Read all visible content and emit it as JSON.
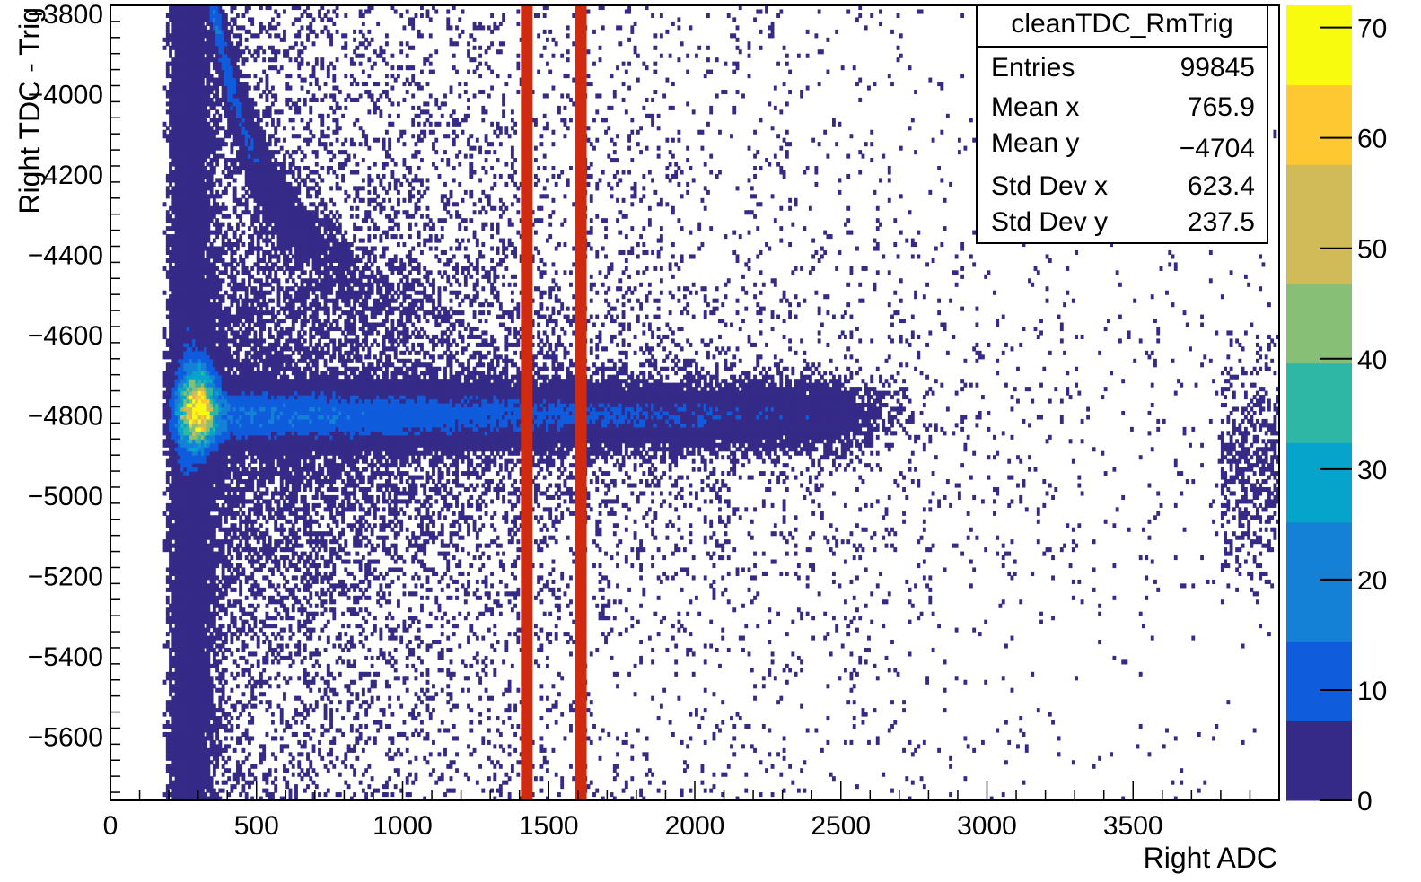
{
  "chart_data": {
    "type": "heatmap",
    "title": "",
    "xlabel": "Right ADC",
    "ylabel": "Right TDC - Trig",
    "xlim": [
      0,
      4000
    ],
    "ylim": [
      -5760,
      -3780
    ],
    "x_ticks": [
      "0",
      "500",
      "1000",
      "1500",
      "2000",
      "2500",
      "3000",
      "3500"
    ],
    "y_ticks": [
      "−3800",
      "−4000",
      "−4200",
      "−4400",
      "−4600",
      "−4800",
      "−5000",
      "−5200",
      "−5400",
      "−5600"
    ],
    "colorbar": {
      "min": 0,
      "max": 72,
      "ticks": [
        "0",
        "10",
        "20",
        "30",
        "40",
        "50",
        "60",
        "70"
      ],
      "palette": [
        "#352a87",
        "#0f5cdd",
        "#1481d6",
        "#06a4ca",
        "#2eb7a4",
        "#87bf77",
        "#d1bb59",
        "#fec832",
        "#f9fb0e"
      ]
    },
    "marker_lines_x": [
      1425,
      1610
    ],
    "marker_line_color": "#d02b10",
    "stats_box": {
      "name": "cleanTDC_RmTrig",
      "rows": [
        {
          "label": "Entries",
          "value": "99845"
        },
        {
          "label": "Mean x",
          "value": "765.9"
        },
        {
          "label": "Mean y",
          "value": "−4704"
        },
        {
          "label": "Std Dev x",
          "value": "623.4"
        },
        {
          "label": "Std Dev y",
          "value": "237.5"
        }
      ]
    },
    "distribution": {
      "band_center_y": -4800,
      "peak_x": 300,
      "peak_y": -4780,
      "edge_x": 200,
      "band_end_x": 2500,
      "cluster_x": [
        3800,
        4000
      ]
    }
  }
}
